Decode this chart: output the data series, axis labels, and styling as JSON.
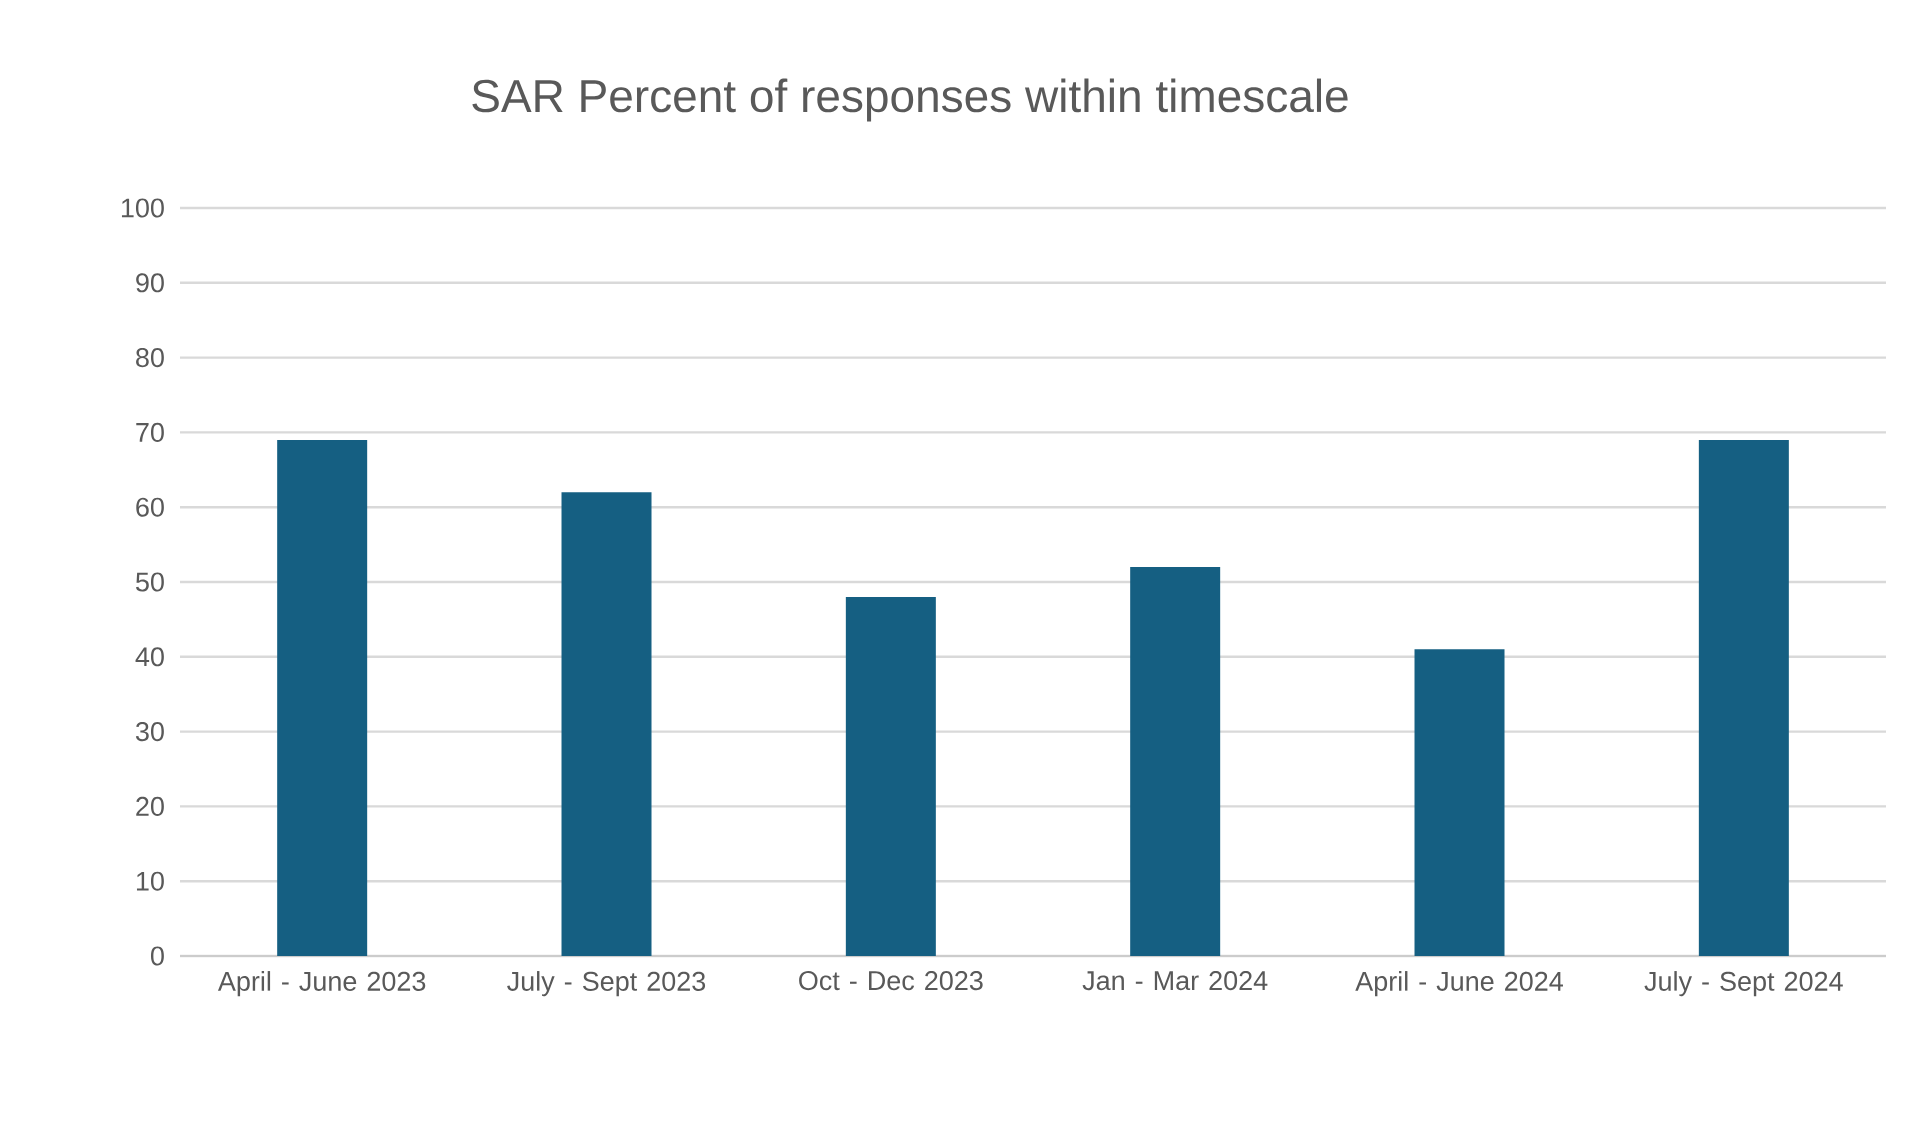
{
  "chart_data": {
    "type": "bar",
    "title": "SAR Percent of responses within timescale",
    "categories": [
      "April - June 2023",
      "July - Sept 2023",
      "Oct - Dec 2023",
      "Jan - Mar 2024",
      "April - June 2024",
      "July - Sept 2024"
    ],
    "values": [
      69,
      62,
      48,
      52,
      41,
      69
    ],
    "color": "#155f82",
    "ylim": [
      0,
      100
    ],
    "yticks": [
      0,
      10,
      20,
      30,
      40,
      50,
      60,
      70,
      80,
      90,
      100
    ],
    "grid": "y"
  }
}
